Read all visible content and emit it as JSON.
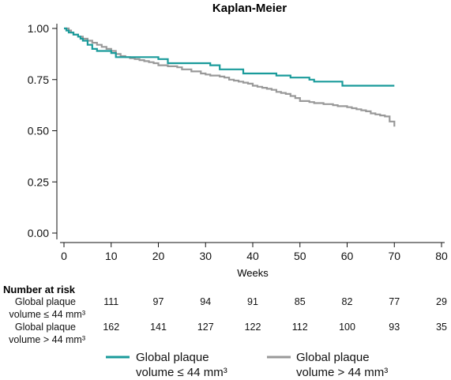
{
  "chart_data": {
    "type": "line",
    "title": "Kaplan-Meier",
    "xlabel": "Weeks",
    "ylabel": "",
    "xlim": [
      0,
      80
    ],
    "ylim": [
      0,
      1
    ],
    "x_ticks": [
      "0",
      "10",
      "20",
      "30",
      "40",
      "50",
      "60",
      "70",
      "80"
    ],
    "y_ticks": [
      "0.00",
      "0.25",
      "0.50",
      "0.75",
      "1.00"
    ],
    "grid": false,
    "legend_position": "bottom",
    "series": [
      {
        "legend_line1": "Global plaque",
        "legend_line2": "volume ≤ 44 mm³",
        "color": "#1a9b9b",
        "x": [
          0,
          0.5,
          1,
          2,
          3,
          3.5,
          4,
          5,
          6,
          7,
          10,
          11,
          20,
          22,
          31,
          33,
          38,
          44,
          45,
          48,
          52,
          53,
          59,
          70
        ],
        "y": [
          1.0,
          0.99,
          0.98,
          0.97,
          0.96,
          0.95,
          0.94,
          0.92,
          0.9,
          0.89,
          0.88,
          0.86,
          0.85,
          0.83,
          0.82,
          0.8,
          0.78,
          0.78,
          0.77,
          0.76,
          0.75,
          0.74,
          0.72,
          0.72
        ]
      },
      {
        "legend_line1": "Global plaque",
        "legend_line2": "volume > 44 mm³",
        "color": "#999999",
        "x": [
          0,
          1,
          1.5,
          2,
          3,
          4,
          5,
          6,
          7,
          8,
          9,
          10,
          11,
          12,
          13,
          14,
          15,
          16,
          17,
          18,
          19,
          20,
          22,
          24,
          25,
          27,
          29,
          30,
          31,
          33,
          34,
          35,
          36,
          37,
          38,
          39,
          40,
          41,
          42,
          43,
          44,
          45,
          46,
          47,
          48,
          49,
          50,
          52,
          53,
          55,
          57,
          58,
          60,
          61,
          62,
          63,
          64,
          65,
          66,
          67,
          68,
          69,
          70
        ],
        "y": [
          1.0,
          0.99,
          0.98,
          0.97,
          0.96,
          0.95,
          0.94,
          0.93,
          0.92,
          0.91,
          0.9,
          0.89,
          0.875,
          0.865,
          0.86,
          0.855,
          0.85,
          0.845,
          0.84,
          0.835,
          0.83,
          0.82,
          0.815,
          0.81,
          0.8,
          0.79,
          0.78,
          0.775,
          0.77,
          0.765,
          0.76,
          0.75,
          0.745,
          0.74,
          0.735,
          0.73,
          0.72,
          0.715,
          0.71,
          0.705,
          0.7,
          0.69,
          0.685,
          0.68,
          0.67,
          0.66,
          0.645,
          0.64,
          0.635,
          0.63,
          0.625,
          0.62,
          0.615,
          0.61,
          0.605,
          0.6,
          0.595,
          0.585,
          0.58,
          0.575,
          0.57,
          0.545,
          0.52
        ]
      }
    ]
  },
  "risk_table": {
    "title": "Number at risk",
    "rows": [
      {
        "label_line1": "Global plaque",
        "label_line2": "volume ≤ 44 mm³",
        "values": [
          "111",
          "97",
          "94",
          "91",
          "85",
          "82",
          "77",
          "29"
        ]
      },
      {
        "label_line1": "Global plaque",
        "label_line2": "volume > 44 mm³",
        "values": [
          "162",
          "141",
          "127",
          "122",
          "112",
          "100",
          "93",
          "35"
        ]
      }
    ]
  }
}
